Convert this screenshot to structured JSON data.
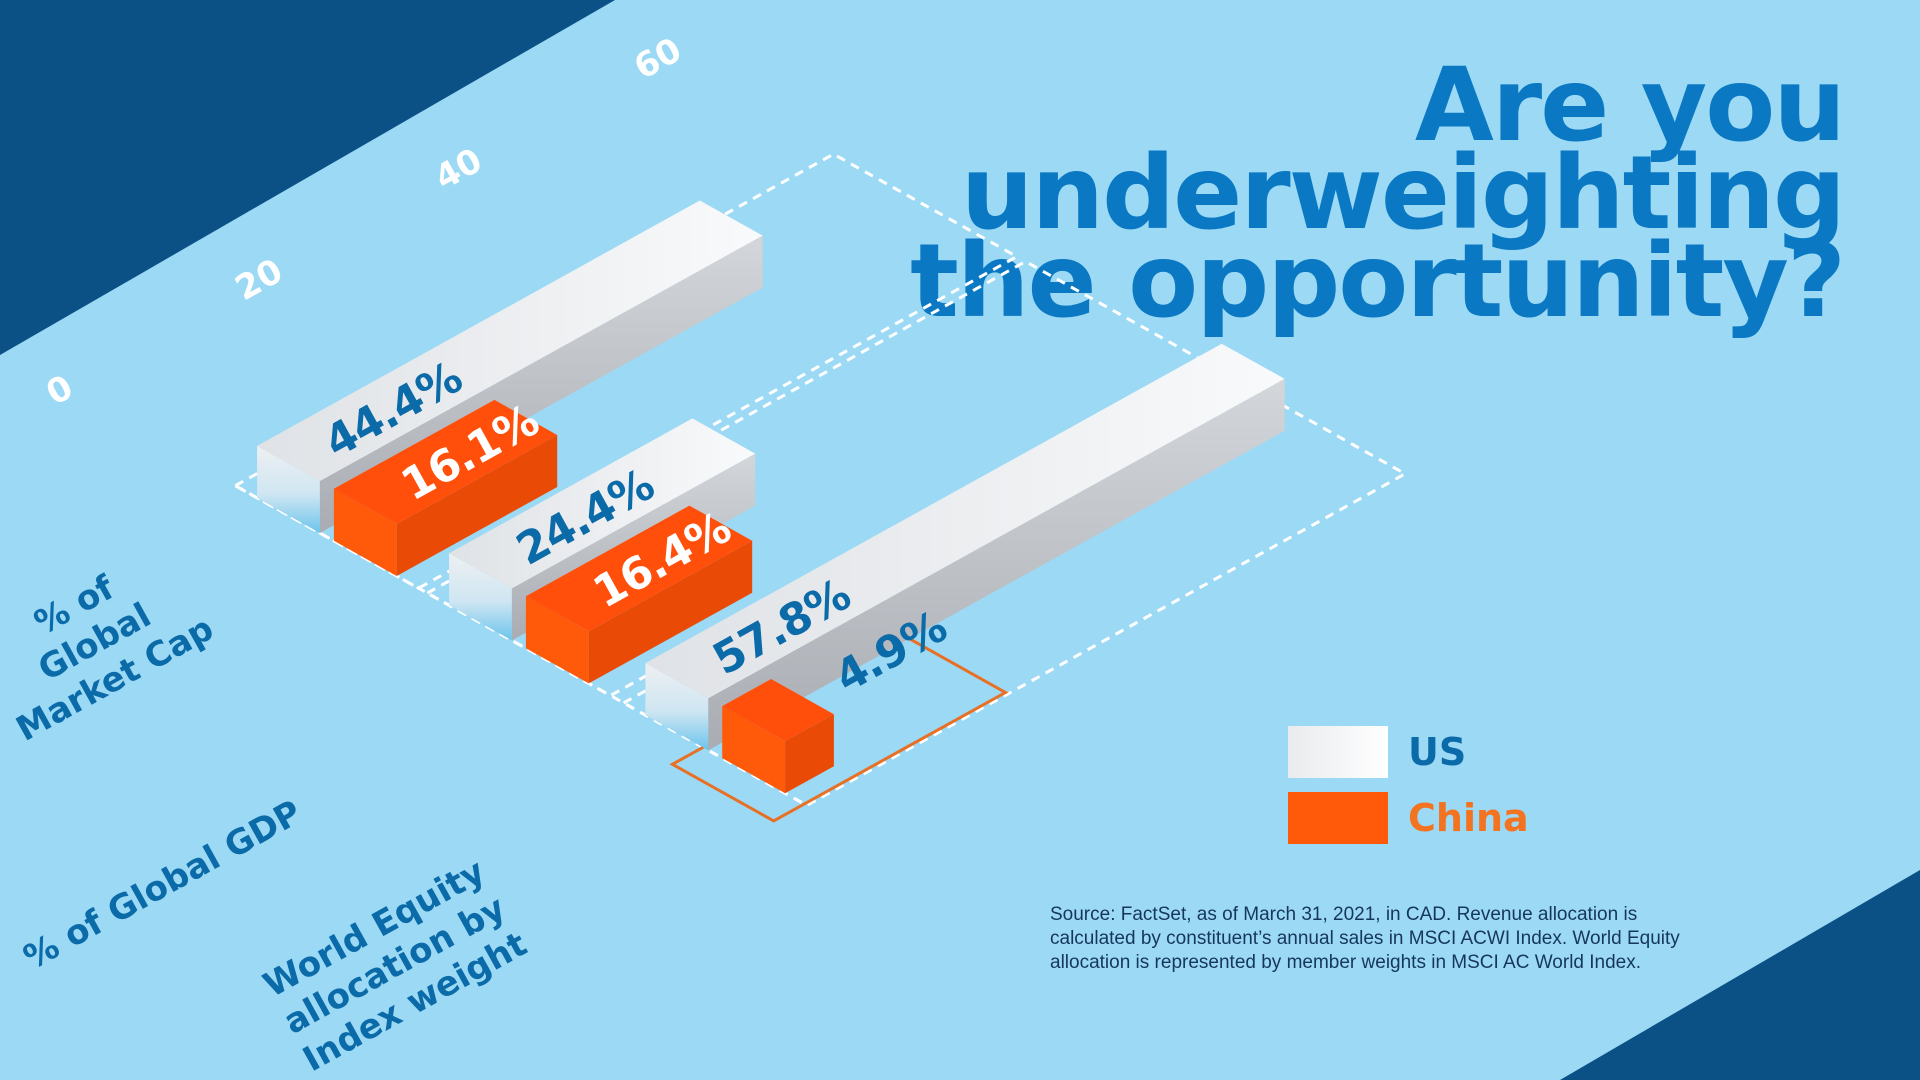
{
  "title": {
    "line1": "Are you",
    "line2": "underweighting",
    "line3": "the opportunity?"
  },
  "colors": {
    "background": "#9bd9f5",
    "dark_blue": "#0b5186",
    "title_blue": "#0a78c2",
    "label_blue": "#0b6aa8",
    "china_orange": "#ff5a0a",
    "china_legend_text": "#f37321",
    "us_white": "#f2f3f5"
  },
  "legend": {
    "us": "US",
    "china": "China"
  },
  "source": "Source: FactSet, as of March 31, 2021, in CAD. Revenue allocation is calculated by constituent’s annual sales in MSCI ACWI Index. World Equity allocation is represented by member weights in MSCI AC World Index.",
  "chart_data": {
    "type": "bar",
    "title": "Are you underweighting the opportunity?",
    "categories": [
      [
        "% of",
        "Global",
        "Market Cap"
      ],
      [
        "% of Global GDP"
      ],
      [
        "World Equity",
        "allocation by",
        "Index weight"
      ]
    ],
    "series": [
      {
        "name": "US",
        "values": [
          44.4,
          24.4,
          57.8
        ],
        "labels": [
          "44.4%",
          "24.4%",
          "57.8%"
        ]
      },
      {
        "name": "China",
        "values": [
          16.1,
          16.4,
          4.9
        ],
        "labels": [
          "16.1%",
          "16.4%",
          "4.9%"
        ]
      }
    ],
    "axis_ticks": [
      "0",
      "20",
      "40",
      "60"
    ],
    "ylim": [
      0,
      60
    ],
    "highlight": "World Equity allocation by Index weight – China",
    "legend_position": "right"
  }
}
